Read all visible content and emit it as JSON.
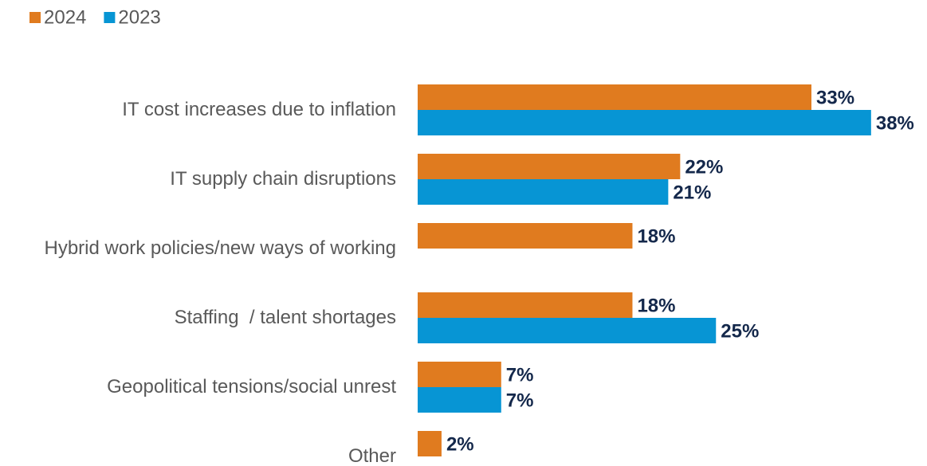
{
  "chart_data": {
    "type": "bar",
    "orientation": "horizontal",
    "categories": [
      "IT cost increases due to inflation",
      "IT supply chain disruptions",
      "Hybrid work policies/new ways of working",
      "Staffing  / talent shortages",
      "Geopolitical tensions/social unrest",
      "Other"
    ],
    "series": [
      {
        "name": "2024",
        "color": "#e07b1f",
        "values": [
          33,
          22,
          18,
          18,
          7,
          2
        ],
        "value_labels": [
          "33%",
          "22%",
          "18%",
          "18%",
          "7%",
          "2%"
        ]
      },
      {
        "name": "2023",
        "color": "#0795d4",
        "values": [
          38,
          21,
          null,
          25,
          7,
          null
        ],
        "value_labels": [
          "38%",
          "21%",
          null,
          "25%",
          "7%",
          null
        ]
      }
    ],
    "legend": "top-left"
  }
}
